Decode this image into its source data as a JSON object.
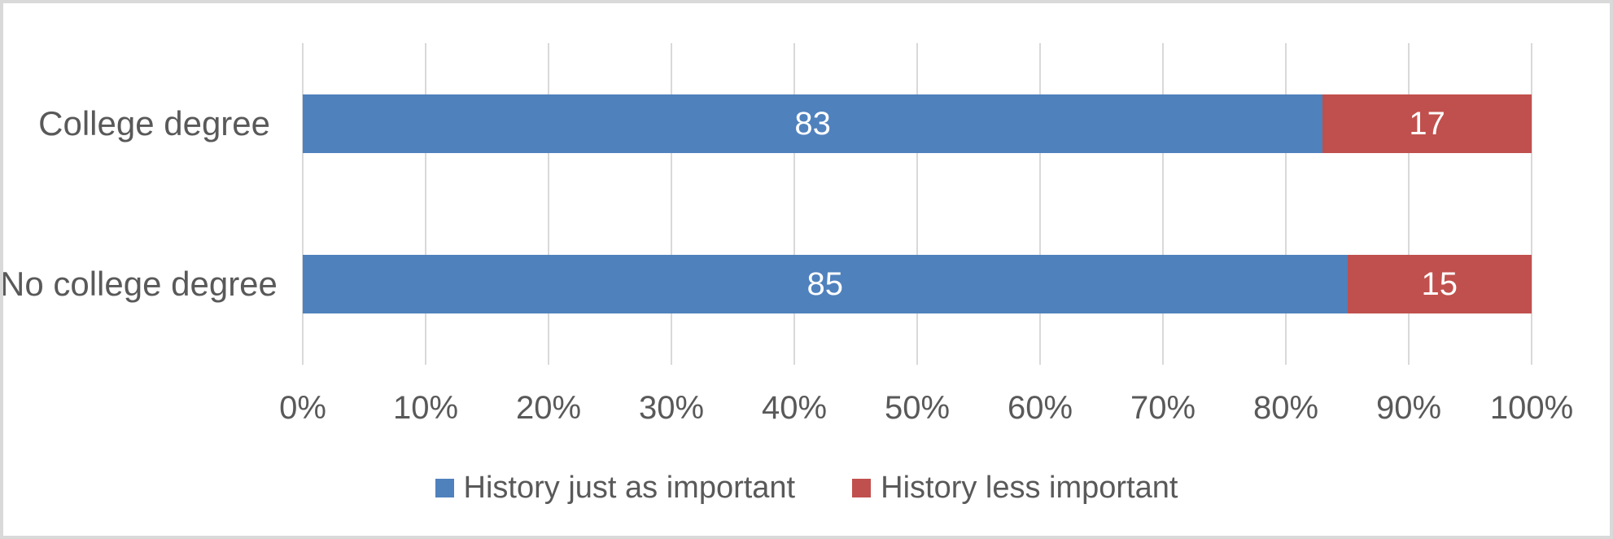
{
  "chart_data": {
    "type": "bar",
    "orientation": "horizontal",
    "stacked": true,
    "title": "",
    "categories": [
      "College degree",
      "No college degree"
    ],
    "series": [
      {
        "name": "History just as important",
        "color": "#4f81bd",
        "values": [
          83,
          85
        ]
      },
      {
        "name": "History less important",
        "color": "#c0504d",
        "values": [
          17,
          15
        ]
      }
    ],
    "data_labels": [
      [
        "83",
        "17"
      ],
      [
        "85",
        "15"
      ]
    ],
    "x_axis": {
      "min": 0,
      "max": 100,
      "tick_labels": [
        "0%",
        "10%",
        "20%",
        "30%",
        "40%",
        "50%",
        "60%",
        "70%",
        "80%",
        "90%",
        "100%"
      ]
    },
    "grid": "vertical",
    "legend_position": "bottom"
  },
  "colors": {
    "gridline": "#d9d9d9",
    "frame_border": "#d9d9d9",
    "axis_text": "#595959",
    "bar_label_text": "#ffffff"
  }
}
